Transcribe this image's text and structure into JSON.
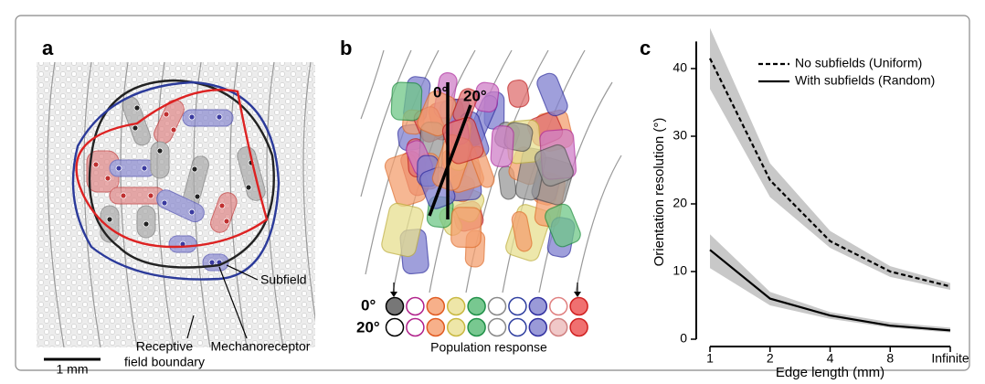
{
  "panel_a": {
    "label": "a",
    "scale_bar": "1 mm",
    "subfield": "Subfield",
    "boundary": [
      "Receptive",
      "field boundary"
    ],
    "mechanoreceptor": "Mechanoreceptor"
  },
  "panel_b": {
    "label": "b",
    "line_labels": [
      "0°",
      "20°"
    ],
    "row_labels": [
      "0°",
      "20°"
    ],
    "caption": "Population response"
  },
  "panel_c": {
    "label": "c"
  },
  "chart_data": {
    "type": "line",
    "x_label": "Edge length (mm)",
    "y_label": "Orientation resolution (°)",
    "categories": [
      "1",
      "2",
      "4",
      "8",
      "Infinite"
    ],
    "ylim": [
      0,
      44
    ],
    "yticks": [
      0,
      10,
      20,
      30,
      40
    ],
    "grid": false,
    "legend": "top-right",
    "series": [
      {
        "name": "No subfields (Uniform)",
        "color": "#000000",
        "dashed": true,
        "band_color": "#c8c8c8",
        "values": [
          41.5,
          23.5,
          14.5,
          10,
          7.8
        ],
        "lower": [
          37,
          21,
          13.5,
          9.2,
          7.3
        ],
        "upper": [
          46,
          26,
          16,
          10.8,
          8.3
        ]
      },
      {
        "name": "With subfields (Random)",
        "color": "#000000",
        "dashed": false,
        "band_color": "#c8c8c8",
        "values": [
          13.2,
          6,
          3.5,
          2,
          1.3
        ],
        "lower": [
          10.5,
          5,
          3,
          1.7,
          1
        ],
        "upper": [
          15.5,
          7,
          4,
          2.5,
          1.7
        ]
      }
    ]
  }
}
